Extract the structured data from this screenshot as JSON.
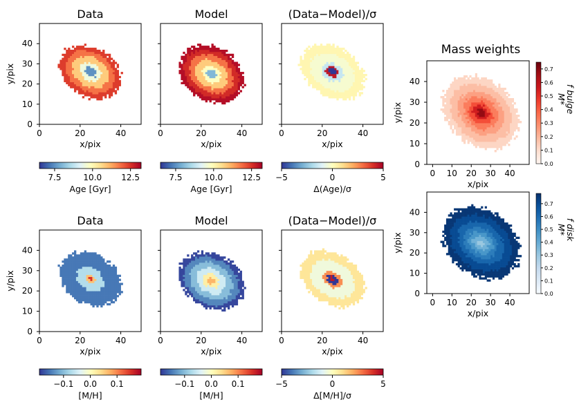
{
  "figure_title": "Mass weights",
  "chart_data": [
    {
      "id": "age-data",
      "type": "heatmap",
      "title": "Data",
      "xlabel": "x/pix",
      "ylabel": "y/pix",
      "xlim": [
        0,
        50
      ],
      "ylim": [
        0,
        50
      ],
      "xticks": [
        "0",
        "20",
        "40"
      ],
      "yticks": [
        "0",
        "10",
        "20",
        "30",
        "40"
      ],
      "cmap": "RdYlBu_r",
      "vmin": 6.5,
      "vmax": 13.2,
      "center": [
        25,
        26
      ],
      "ellipse": {
        "a": 16,
        "b": 12,
        "angle": -32
      },
      "bands": [
        {
          "r": 0.2,
          "value": 7.5
        },
        {
          "r": 0.35,
          "value": 9.5
        },
        {
          "r": 0.6,
          "value": 10.8
        },
        {
          "r": 0.8,
          "value": 11.8
        },
        {
          "r": 1.0,
          "value": 12.4
        }
      ],
      "colorbar": {
        "label": "Age [Gyr]",
        "ticks": [
          {
            "v": 7.5,
            "t": "7.5"
          },
          {
            "v": 10,
            "t": "10.0"
          },
          {
            "v": 12.5,
            "t": "12.5"
          }
        ]
      }
    },
    {
      "id": "age-model",
      "type": "heatmap",
      "title": "Model",
      "xlabel": "x/pix",
      "ylabel": "",
      "xlim": [
        0,
        50
      ],
      "ylim": [
        0,
        50
      ],
      "xticks": [
        "0",
        "20",
        "40"
      ],
      "yticks": [],
      "cmap": "RdYlBu_r",
      "vmin": 6.5,
      "vmax": 13.2,
      "center": [
        25,
        25
      ],
      "ellipse": {
        "a": 17,
        "b": 13,
        "angle": -32
      },
      "bands": [
        {
          "r": 0.15,
          "value": 8.0
        },
        {
          "r": 0.3,
          "value": 9.8
        },
        {
          "r": 0.5,
          "value": 10.8
        },
        {
          "r": 0.68,
          "value": 11.8
        },
        {
          "r": 0.85,
          "value": 12.6
        },
        {
          "r": 1.0,
          "value": 13.0
        }
      ],
      "colorbar": {
        "label": "Age [Gyr]",
        "ticks": [
          {
            "v": 7.5,
            "t": "7.5"
          },
          {
            "v": 10,
            "t": "10.0"
          },
          {
            "v": 12.5,
            "t": "12.5"
          }
        ]
      }
    },
    {
      "id": "age-resid",
      "type": "heatmap",
      "title": "(Data−Model)/σ",
      "xlabel": "x/pix",
      "ylabel": "",
      "xlim": [
        0,
        50
      ],
      "ylim": [
        0,
        50
      ],
      "xticks": [
        "0",
        "20",
        "40"
      ],
      "yticks": [],
      "cmap": "RdYlBu_r",
      "vmin": -5,
      "vmax": 5,
      "center": [
        25,
        26
      ],
      "ellipse": {
        "a": 17,
        "b": 12,
        "angle": -32
      },
      "bands": [
        {
          "r": 0.12,
          "value": -5
        },
        {
          "r": 0.2,
          "value": 4.5
        },
        {
          "r": 0.35,
          "value": -1.5
        },
        {
          "r": 0.7,
          "value": -0.3
        },
        {
          "r": 1.0,
          "value": 0.3
        }
      ],
      "colorbar": {
        "label": "Δ(Age)/σ",
        "ticks": [
          {
            "v": -5,
            "t": "−5"
          },
          {
            "v": 0,
            "t": "0"
          },
          {
            "v": 5,
            "t": "5"
          }
        ]
      }
    },
    {
      "id": "mh-data",
      "type": "heatmap",
      "title": "Data",
      "xlabel": "x/pix",
      "ylabel": "y/pix",
      "xlim": [
        0,
        50
      ],
      "ylim": [
        0,
        50
      ],
      "xticks": [
        "0",
        "20",
        "40"
      ],
      "yticks": [
        "0",
        "10",
        "20",
        "30",
        "40"
      ],
      "cmap": "RdYlBu_r",
      "vmin": -0.19,
      "vmax": 0.19,
      "center": [
        25,
        26
      ],
      "ellipse": {
        "a": 16,
        "b": 12,
        "angle": -32
      },
      "bands": [
        {
          "r": 0.08,
          "value": 0.15
        },
        {
          "r": 0.15,
          "value": 0.06
        },
        {
          "r": 0.45,
          "value": -0.07
        },
        {
          "r": 1.0,
          "value": -0.15
        }
      ],
      "colorbar": {
        "label": "[M/H]",
        "ticks": [
          {
            "v": -0.1,
            "t": "−0.1"
          },
          {
            "v": 0,
            "t": "0.0"
          },
          {
            "v": 0.1,
            "t": "0.1"
          }
        ]
      }
    },
    {
      "id": "mh-model",
      "type": "heatmap",
      "title": "Model",
      "xlabel": "x/pix",
      "ylabel": "",
      "xlim": [
        0,
        50
      ],
      "ylim": [
        0,
        50
      ],
      "xticks": [
        "0",
        "20",
        "40"
      ],
      "yticks": [],
      "cmap": "RdYlBu_r",
      "vmin": -0.19,
      "vmax": 0.19,
      "center": [
        25,
        25
      ],
      "ellipse": {
        "a": 17,
        "b": 13,
        "angle": -32
      },
      "bands": [
        {
          "r": 0.12,
          "value": 0.07
        },
        {
          "r": 0.25,
          "value": 0.02
        },
        {
          "r": 0.45,
          "value": -0.05
        },
        {
          "r": 0.65,
          "value": -0.1
        },
        {
          "r": 0.85,
          "value": -0.14
        },
        {
          "r": 1.0,
          "value": -0.18
        }
      ],
      "colorbar": {
        "label": "[M/H]",
        "ticks": [
          {
            "v": -0.1,
            "t": "−0.1"
          },
          {
            "v": 0,
            "t": "0.0"
          },
          {
            "v": 0.1,
            "t": "0.1"
          }
        ]
      }
    },
    {
      "id": "mh-resid",
      "type": "heatmap",
      "title": "(Data−Model)/σ",
      "xlabel": "x/pix",
      "ylabel": "",
      "xlim": [
        0,
        50
      ],
      "ylim": [
        0,
        50
      ],
      "xticks": [
        "0",
        "20",
        "40"
      ],
      "yticks": [],
      "cmap": "RdYlBu_r",
      "vmin": -5,
      "vmax": 5,
      "center": [
        25,
        26
      ],
      "ellipse": {
        "a": 17,
        "b": 12,
        "angle": -32
      },
      "bands": [
        {
          "r": 0.08,
          "value": 4.5
        },
        {
          "r": 0.16,
          "value": -5
        },
        {
          "r": 0.3,
          "value": 2.5
        },
        {
          "r": 0.7,
          "value": -0.5
        },
        {
          "r": 1.0,
          "value": 0.8
        }
      ],
      "colorbar": {
        "label": "Δ[M/H]/σ",
        "ticks": [
          {
            "v": -5,
            "t": "−5"
          },
          {
            "v": 0,
            "t": "0"
          },
          {
            "v": 5,
            "t": "5"
          }
        ]
      }
    },
    {
      "id": "w-bulge",
      "type": "heatmap",
      "title": "",
      "xlabel": "x/pix",
      "ylabel": "y/pix",
      "xlim": [
        -3,
        50
      ],
      "ylim": [
        0,
        50
      ],
      "xticks": [
        "0",
        "10",
        "20",
        "30",
        "40"
      ],
      "yticks": [
        "0",
        "10",
        "20",
        "30",
        "40"
      ],
      "cmap": "Reds",
      "vmin": 0,
      "vmax": 0.75,
      "center": [
        25,
        25
      ],
      "ellipse": {
        "a": 21,
        "b": 16,
        "angle": -32
      },
      "bands": [
        {
          "r": 0.1,
          "value": 0.68
        },
        {
          "r": 0.2,
          "value": 0.55
        },
        {
          "r": 0.32,
          "value": 0.43
        },
        {
          "r": 0.45,
          "value": 0.33
        },
        {
          "r": 0.6,
          "value": 0.25
        },
        {
          "r": 0.8,
          "value": 0.18
        },
        {
          "r": 1.0,
          "value": 0.12
        }
      ],
      "colorbar": {
        "label": "f bulge",
        "label2": "M*",
        "ticks": [
          {
            "v": 0,
            "t": "0.0"
          },
          {
            "v": 0.1,
            "t": "0.1"
          },
          {
            "v": 0.2,
            "t": "0.2"
          },
          {
            "v": 0.3,
            "t": "0.3"
          },
          {
            "v": 0.4,
            "t": "0.4"
          },
          {
            "v": 0.5,
            "t": "0.5"
          },
          {
            "v": 0.6,
            "t": "0.6"
          },
          {
            "v": 0.7,
            "t": "0.7"
          }
        ]
      }
    },
    {
      "id": "w-disk",
      "type": "heatmap",
      "title": "",
      "xlabel": "x/pix",
      "ylabel": "y/pix",
      "xlim": [
        -3,
        50
      ],
      "ylim": [
        0,
        50
      ],
      "xticks": [
        "0",
        "10",
        "20",
        "30",
        "40"
      ],
      "yticks": [
        "0",
        "10",
        "20",
        "30",
        "40"
      ],
      "cmap": "Blues",
      "vmin": 0,
      "vmax": 0.78,
      "center": [
        25,
        25
      ],
      "ellipse": {
        "a": 21,
        "b": 16,
        "angle": -32
      },
      "bands": [
        {
          "r": 0.1,
          "value": 0.3
        },
        {
          "r": 0.2,
          "value": 0.38
        },
        {
          "r": 0.32,
          "value": 0.47
        },
        {
          "r": 0.45,
          "value": 0.55
        },
        {
          "r": 0.6,
          "value": 0.62
        },
        {
          "r": 0.8,
          "value": 0.7
        },
        {
          "r": 1.0,
          "value": 0.76
        }
      ],
      "colorbar": {
        "label": "f disk",
        "label2": "M*",
        "ticks": [
          {
            "v": 0,
            "t": "0.0"
          },
          {
            "v": 0.1,
            "t": "0.1"
          },
          {
            "v": 0.2,
            "t": "0.2"
          },
          {
            "v": 0.3,
            "t": "0.3"
          },
          {
            "v": 0.4,
            "t": "0.4"
          },
          {
            "v": 0.5,
            "t": "0.5"
          },
          {
            "v": 0.6,
            "t": "0.6"
          },
          {
            "v": 0.7,
            "t": "0.7"
          }
        ]
      }
    }
  ]
}
